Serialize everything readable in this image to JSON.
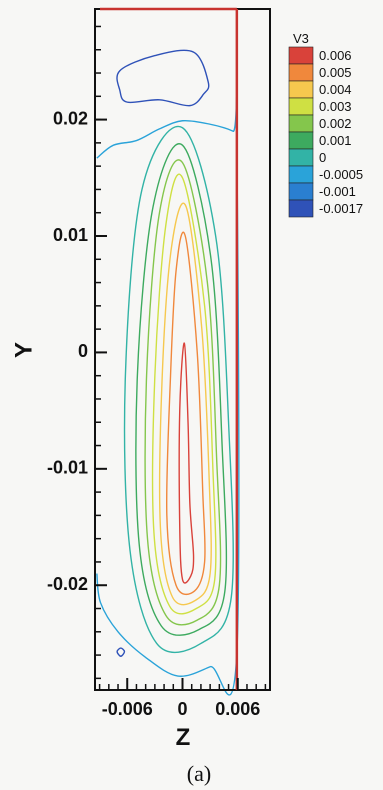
{
  "chart_data": {
    "type": "contour",
    "title": "",
    "xlabel": "Z",
    "ylabel": "Y",
    "caption": "(a)",
    "xlim": [
      -0.0095,
      0.0095
    ],
    "ylim": [
      -0.029,
      0.0295
    ],
    "xticks": [
      {
        "value": -0.006,
        "label": "-0.006"
      },
      {
        "value": 0,
        "label": "0"
      },
      {
        "value": 0.006,
        "label": "0.006"
      }
    ],
    "yticks": [
      {
        "value": 0.02,
        "label": "0.02"
      },
      {
        "value": 0.01,
        "label": "0.01"
      },
      {
        "value": 0,
        "label": "0"
      },
      {
        "value": -0.01,
        "label": "-0.01"
      },
      {
        "value": -0.02,
        "label": "-0.02"
      }
    ],
    "wall_z": 0.0059,
    "legend": {
      "title": "V3",
      "placement": "top-right",
      "levels": [
        {
          "value": 0.006,
          "label": "0.006",
          "color": "#d9423a"
        },
        {
          "value": 0.005,
          "label": "0.005",
          "color": "#f0883c"
        },
        {
          "value": 0.004,
          "label": "0.004",
          "color": "#f6c84e"
        },
        {
          "value": 0.003,
          "label": "0.003",
          "color": "#cfe043"
        },
        {
          "value": 0.002,
          "label": "0.002",
          "color": "#84c64c"
        },
        {
          "value": 0.001,
          "label": "0.001",
          "color": "#3daa5f"
        },
        {
          "value": 0,
          "label": "0",
          "color": "#32b3a6"
        },
        {
          "value": -0.0005,
          "label": "-0.0005",
          "color": "#2aa3d9"
        },
        {
          "value": -0.001,
          "label": "-0.001",
          "color": "#2a7fd0"
        },
        {
          "value": -0.0017,
          "label": "-0.0017",
          "color": "#2f52b8"
        }
      ]
    },
    "contours": [
      {
        "level": 0.006,
        "points": [
          [
            0.0002,
            0.0008
          ],
          [
            0.0006,
            -0.006
          ],
          [
            0.0008,
            -0.013
          ],
          [
            0.0012,
            -0.0175
          ],
          [
            0.0009,
            -0.0192
          ],
          [
            0.0,
            -0.0195
          ],
          [
            -0.0003,
            -0.015
          ],
          [
            -0.0003,
            -0.005
          ]
        ]
      },
      {
        "level": 0.005,
        "points": [
          [
            0.0003,
            0.01
          ],
          [
            0.0016,
            0.0
          ],
          [
            0.0022,
            -0.012
          ],
          [
            0.0024,
            -0.018
          ],
          [
            0.0013,
            -0.0205
          ],
          [
            -0.0007,
            -0.02
          ],
          [
            -0.0017,
            -0.014
          ],
          [
            -0.0013,
            -0.002
          ],
          [
            -0.0007,
            0.007
          ]
        ]
      },
      {
        "level": 0.004,
        "points": [
          [
            0.0004,
            0.0125
          ],
          [
            0.0021,
            0.002
          ],
          [
            0.0029,
            -0.011
          ],
          [
            0.003,
            -0.019
          ],
          [
            0.0014,
            -0.0213
          ],
          [
            -0.0011,
            -0.021
          ],
          [
            -0.0024,
            -0.015
          ],
          [
            -0.0022,
            -0.002
          ],
          [
            -0.0012,
            0.009
          ]
        ]
      },
      {
        "level": 0.003,
        "points": [
          [
            0.0,
            0.015
          ],
          [
            0.0024,
            0.004
          ],
          [
            0.0033,
            -0.01
          ],
          [
            0.0035,
            -0.0195
          ],
          [
            0.0015,
            -0.022
          ],
          [
            -0.0014,
            -0.0218
          ],
          [
            -0.0031,
            -0.0155
          ],
          [
            -0.003,
            -0.002
          ],
          [
            -0.0018,
            0.011
          ]
        ]
      },
      {
        "level": 0.002,
        "points": [
          [
            0.0,
            0.0163
          ],
          [
            0.0027,
            0.006
          ],
          [
            0.0037,
            -0.009
          ],
          [
            0.004,
            -0.02
          ],
          [
            0.0016,
            -0.023
          ],
          [
            -0.0018,
            -0.0226
          ],
          [
            -0.0038,
            -0.016
          ],
          [
            -0.0039,
            -0.002
          ],
          [
            -0.0025,
            0.012
          ]
        ]
      },
      {
        "level": 0.001,
        "points": [
          [
            0.0,
            0.0178
          ],
          [
            0.0031,
            0.008
          ],
          [
            0.0043,
            -0.008
          ],
          [
            0.0046,
            -0.0205
          ],
          [
            0.0018,
            -0.0238
          ],
          [
            -0.0023,
            -0.0235
          ],
          [
            -0.0047,
            -0.0165
          ],
          [
            -0.0049,
            -0.002
          ],
          [
            -0.0032,
            0.0125
          ]
        ]
      },
      {
        "level": 0.0,
        "points": [
          [
            0.0,
            0.0193
          ],
          [
            0.0036,
            0.01
          ],
          [
            0.005,
            -0.006
          ],
          [
            0.0053,
            -0.021
          ],
          [
            0.002,
            -0.025
          ],
          [
            -0.0028,
            -0.025
          ],
          [
            -0.0057,
            -0.017
          ],
          [
            -0.0062,
            -0.002
          ],
          [
            -0.0044,
            0.014
          ]
        ]
      },
      {
        "level": -0.0005,
        "points": [
          [
            -0.0093,
            0.0167
          ],
          [
            -0.0075,
            0.0178
          ],
          [
            -0.005,
            0.0182
          ],
          [
            -0.0025,
            0.0192
          ],
          [
            0.0,
            0.0199
          ],
          [
            0.003,
            0.0196
          ],
          [
            0.0055,
            0.019
          ],
          [
            0.0059,
            0.0185
          ],
          [
            0.0059,
            -0.0258
          ],
          [
            0.003,
            -0.027
          ],
          [
            -0.0005,
            -0.0278
          ],
          [
            -0.004,
            -0.0262
          ],
          [
            -0.007,
            -0.024
          ],
          [
            -0.0089,
            -0.0215
          ],
          [
            -0.0093,
            -0.019
          ]
        ],
        "closed": false
      },
      {
        "level": -0.0017,
        "points": [
          [
            -0.0068,
            0.0242
          ],
          [
            -0.003,
            0.0255
          ],
          [
            0.0012,
            0.0258
          ],
          [
            0.0028,
            0.0232
          ],
          [
            0.0023,
            0.0222
          ],
          [
            0.0008,
            0.0212
          ],
          [
            -0.0025,
            0.0217
          ],
          [
            -0.006,
            0.0215
          ],
          [
            -0.0068,
            0.0225
          ]
        ]
      },
      {
        "level": -0.0017,
        "points": [
          [
            -0.0067,
            -0.0254
          ],
          [
            -0.0063,
            -0.0257
          ],
          [
            -0.0067,
            -0.0261
          ],
          [
            -0.0071,
            -0.0257
          ]
        ]
      }
    ]
  }
}
